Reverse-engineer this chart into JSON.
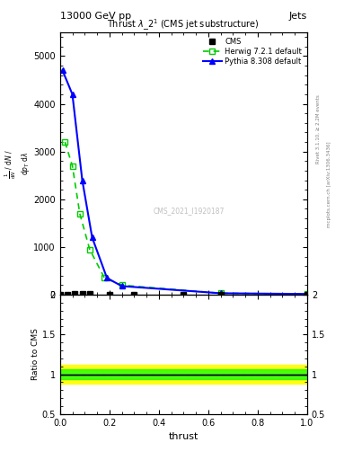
{
  "title": "Thrust $\\lambda\\_2^1$ (CMS jet substructure)",
  "top_left_text": "13000 GeV pp",
  "top_right_text": "Jets",
  "right_label1": "Rivet 3.1.10, ≥ 2.2M events",
  "right_label2": "mcplots.cern.ch [arXiv:1306.3436]",
  "watermark": "CMS_2021_I1920187",
  "xlabel": "thrust",
  "cms_x": [
    0.0,
    0.03,
    0.06,
    0.09,
    0.12,
    0.2,
    0.3,
    0.5,
    0.65,
    1.0
  ],
  "cms_y": [
    5,
    8,
    10,
    12,
    10,
    8,
    6,
    5,
    5,
    4
  ],
  "herwig_x": [
    0.02,
    0.05,
    0.08,
    0.12,
    0.18,
    0.25,
    0.65,
    1.0
  ],
  "herwig_y": [
    3200,
    2700,
    1700,
    950,
    350,
    200,
    30,
    15
  ],
  "pythia_x": [
    0.01,
    0.05,
    0.09,
    0.13,
    0.19,
    0.25,
    0.65,
    1.0
  ],
  "pythia_y": [
    4700,
    4200,
    2400,
    1200,
    350,
    180,
    30,
    15
  ],
  "cms_color": "#000000",
  "herwig_color": "#00cc00",
  "pythia_color": "#0000ff",
  "ylim_main": [
    0,
    5500
  ],
  "ylim_ratio": [
    0.5,
    2.0
  ],
  "yticks_main": [
    0,
    1000,
    2000,
    3000,
    4000,
    5000
  ],
  "band_yellow_low": 0.88,
  "band_yellow_high": 1.12,
  "band_green_low": 0.94,
  "band_green_high": 1.06
}
